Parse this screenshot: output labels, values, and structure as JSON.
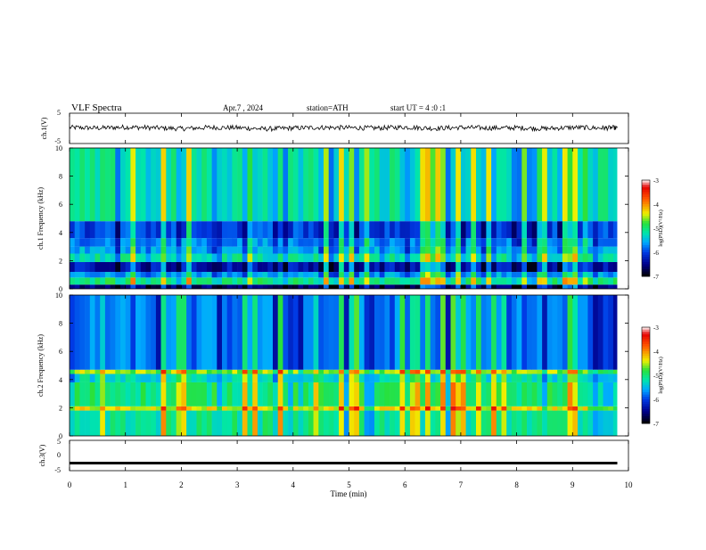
{
  "header": {
    "title": "VLF Spectra",
    "date": "Apr.7 , 2024",
    "station": "station=ATH",
    "start_ut": "start UT = 4 :0 :1"
  },
  "chart_data": [
    {
      "type": "line",
      "name": "ch1-waveform",
      "ylabel": "ch.1(V)",
      "ylim": [
        -5,
        5
      ],
      "y_ticks": [
        "5",
        "-5"
      ],
      "x": [
        0,
        0.5,
        1,
        1.5,
        2,
        2.5,
        3,
        3.5,
        4,
        4.5,
        5,
        5.5,
        6,
        6.5,
        7,
        7.5,
        8,
        8.5,
        9,
        9.5,
        9.8
      ],
      "y": [
        0.3,
        0.1,
        0.4,
        0.2,
        -0.1,
        0.3,
        0.2,
        -0.2,
        0.1,
        0.3,
        0.2,
        0.1,
        0.4,
        0.0,
        0.3,
        0.1,
        0.2,
        -0.1,
        0.3,
        0.1,
        0.2
      ]
    },
    {
      "type": "heatmap",
      "name": "ch1-spectrogram",
      "ylabel": "ch.1 Frequency (kHz)",
      "ylim": [
        0,
        10
      ],
      "y_ticks": [
        "0",
        "2",
        "4",
        "6",
        "8",
        "10"
      ],
      "bands": [
        {
          "from": 0,
          "to": 0.3,
          "level": -6.6
        },
        {
          "from": 0.3,
          "to": 0.8,
          "level": -5.0
        },
        {
          "from": 0.8,
          "to": 1.2,
          "level": -5.6
        },
        {
          "from": 1.2,
          "to": 1.9,
          "level": -6.3
        },
        {
          "from": 1.9,
          "to": 2.5,
          "level": -5.2
        },
        {
          "from": 2.5,
          "to": 3.0,
          "level": -5.6
        },
        {
          "from": 3.0,
          "to": 3.6,
          "level": -5.7
        },
        {
          "from": 3.6,
          "to": 4.8,
          "level": -6.0
        },
        {
          "from": 4.8,
          "to": 10,
          "level": -5.2
        }
      ],
      "colorbar": {
        "label": "log(PSD)(V²/Hz)",
        "ticks": [
          "-3",
          "-4",
          "-5",
          "-6",
          "-7"
        ],
        "range": [
          -7,
          -3
        ]
      }
    },
    {
      "type": "heatmap",
      "name": "ch2-spectrogram",
      "ylabel": "ch.2 Frequency (kHz)",
      "ylim": [
        0,
        10
      ],
      "y_ticks": [
        "0",
        "2",
        "4",
        "6",
        "8",
        "10"
      ],
      "bands": [
        {
          "from": 0,
          "to": 1.8,
          "level": -5.1
        },
        {
          "from": 1.8,
          "to": 2.1,
          "level": -4.4
        },
        {
          "from": 2.1,
          "to": 3.8,
          "level": -5.0
        },
        {
          "from": 3.8,
          "to": 4.4,
          "level": -5.3
        },
        {
          "from": 4.4,
          "to": 4.7,
          "level": -4.6
        },
        {
          "from": 4.7,
          "to": 10,
          "level": -5.8
        }
      ],
      "colorbar": {
        "label": "log(PSD)(V²/Hz)",
        "ticks": [
          "-3",
          "-4",
          "-5",
          "-6",
          "-7"
        ],
        "range": [
          -7,
          -3
        ]
      }
    },
    {
      "type": "line",
      "name": "ch3-waveform",
      "ylabel": "ch.3(V)",
      "ylim": [
        -5,
        5
      ],
      "y_ticks": [
        "5",
        "0",
        "-5"
      ],
      "x": [
        0,
        9.8
      ],
      "y": [
        -2.5,
        -2.5
      ]
    }
  ],
  "x_axis": {
    "label": "Time (min)",
    "xlim": [
      0,
      10
    ],
    "ticks": [
      "0",
      "1",
      "2",
      "3",
      "4",
      "5",
      "6",
      "7",
      "8",
      "9",
      "10"
    ]
  }
}
